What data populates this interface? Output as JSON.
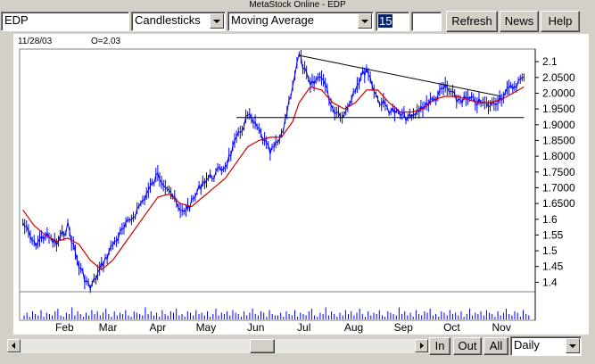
{
  "window": {
    "title": "MetaStock Online - EDP"
  },
  "toolbar": {
    "symbol": "EDP",
    "chart_style": "Candlesticks",
    "indicator": "Moving Average",
    "period": "15",
    "extra_value": "",
    "refresh_label": "Refresh",
    "news_label": "News",
    "help_label": "Help"
  },
  "info": {
    "date": "11/28/03",
    "open": "O=2.03"
  },
  "bottom": {
    "in_label": "In",
    "out_label": "Out",
    "all_label": "All",
    "interval": "Daily"
  },
  "colors": {
    "price": "#0000ff",
    "moving_average": "#cc0000",
    "trendline": "#000000",
    "volume": "#0000ff"
  },
  "chart_data": {
    "type": "candlestick",
    "title": "",
    "x_labels": [
      "Feb",
      "Mar",
      "Apr",
      "May",
      "Jun",
      "Jul",
      "Aug",
      "Sep",
      "Oct",
      "Nov"
    ],
    "y_labels": [
      "2.1",
      "2.0500",
      "2.0000",
      "1.9500",
      "1.9000",
      "1.8500",
      "1.8000",
      "1.7500",
      "1.7000",
      "1.6500",
      "1.6",
      "1.55",
      "1.5",
      "1.45",
      "1.4"
    ],
    "ylim": [
      1.37,
      2.14
    ],
    "price_path": [
      [
        "Jan 20",
        1.59
      ],
      [
        "Jan 27",
        1.52
      ],
      [
        "Feb 3",
        1.55
      ],
      [
        "Feb 10",
        1.52
      ],
      [
        "Feb 17",
        1.58
      ],
      [
        "Feb 24",
        1.45
      ],
      [
        "Mar 3",
        1.38
      ],
      [
        "Mar 10",
        1.45
      ],
      [
        "Mar 17",
        1.52
      ],
      [
        "Mar 24",
        1.57
      ],
      [
        "Mar 31",
        1.62
      ],
      [
        "Apr 7",
        1.68
      ],
      [
        "Apr 14",
        1.74
      ],
      [
        "Apr 21",
        1.7
      ],
      [
        "Apr 28",
        1.62
      ],
      [
        "May 5",
        1.65
      ],
      [
        "May 12",
        1.72
      ],
      [
        "May 19",
        1.74
      ],
      [
        "May 26",
        1.77
      ],
      [
        "Jun 2",
        1.85
      ],
      [
        "Jun 9",
        1.93
      ],
      [
        "Jun 16",
        1.88
      ],
      [
        "Jun 23",
        1.81
      ],
      [
        "Jun 30",
        1.86
      ],
      [
        "Jul 7",
        2.03
      ],
      [
        "Jul 11",
        2.12
      ],
      [
        "Jul 18",
        2.02
      ],
      [
        "Jul 25",
        2.06
      ],
      [
        "Aug 1",
        1.95
      ],
      [
        "Aug 8",
        1.93
      ],
      [
        "Aug 15",
        2.02
      ],
      [
        "Aug 22",
        2.08
      ],
      [
        "Aug 29",
        1.98
      ],
      [
        "Sep 5",
        1.95
      ],
      [
        "Sep 12",
        1.93
      ],
      [
        "Sep 19",
        1.92
      ],
      [
        "Sep 26",
        1.96
      ],
      [
        "Oct 3",
        1.98
      ],
      [
        "Oct 10",
        2.02
      ],
      [
        "Oct 17",
        1.98
      ],
      [
        "Oct 24",
        1.98
      ],
      [
        "Oct 31",
        1.97
      ],
      [
        "Nov 7",
        1.96
      ],
      [
        "Nov 14",
        1.99
      ],
      [
        "Nov 21",
        2.02
      ],
      [
        "Nov 28",
        2.05
      ]
    ],
    "moving_average_path": [
      [
        "Jan 20",
        1.63
      ],
      [
        "Jan 27",
        1.58
      ],
      [
        "Feb 3",
        1.55
      ],
      [
        "Feb 10",
        1.53
      ],
      [
        "Feb 17",
        1.54
      ],
      [
        "Feb 24",
        1.52
      ],
      [
        "Mar 3",
        1.47
      ],
      [
        "Mar 10",
        1.44
      ],
      [
        "Mar 17",
        1.47
      ],
      [
        "Mar 24",
        1.52
      ],
      [
        "Mar 31",
        1.57
      ],
      [
        "Apr 7",
        1.62
      ],
      [
        "Apr 14",
        1.67
      ],
      [
        "Apr 21",
        1.68
      ],
      [
        "Apr 28",
        1.65
      ],
      [
        "May 5",
        1.64
      ],
      [
        "May 12",
        1.67
      ],
      [
        "May 19",
        1.7
      ],
      [
        "May 26",
        1.73
      ],
      [
        "Jun 2",
        1.78
      ],
      [
        "Jun 9",
        1.83
      ],
      [
        "Jun 16",
        1.85
      ],
      [
        "Jun 23",
        1.86
      ],
      [
        "Jun 30",
        1.86
      ],
      [
        "Jul 7",
        1.91
      ],
      [
        "Jul 11",
        1.97
      ],
      [
        "Jul 18",
        2.02
      ],
      [
        "Jul 25",
        2.01
      ],
      [
        "Aug 1",
        1.97
      ],
      [
        "Aug 8",
        1.95
      ],
      [
        "Aug 15",
        1.97
      ],
      [
        "Aug 22",
        2.01
      ],
      [
        "Aug 29",
        2.01
      ],
      [
        "Sep 5",
        1.97
      ],
      [
        "Sep 12",
        1.94
      ],
      [
        "Sep 19",
        1.94
      ],
      [
        "Sep 26",
        1.95
      ],
      [
        "Oct 3",
        1.98
      ],
      [
        "Oct 10",
        1.99
      ],
      [
        "Oct 17",
        1.99
      ],
      [
        "Oct 24",
        1.98
      ],
      [
        "Oct 31",
        1.97
      ],
      [
        "Nov 7",
        1.97
      ],
      [
        "Nov 14",
        1.98
      ],
      [
        "Nov 21",
        2.0
      ],
      [
        "Nov 28",
        2.02
      ]
    ],
    "trendlines": [
      {
        "name": "resistance",
        "from": [
          "Jul 11",
          2.12
        ],
        "to": [
          "Nov 14",
          1.99
        ]
      },
      {
        "name": "support",
        "from": [
          "Jun 2",
          1.923
        ],
        "to": [
          "Nov 28",
          1.923
        ]
      }
    ],
    "volume_bars": [
      3,
      5,
      2,
      6,
      4,
      3,
      7,
      2,
      5,
      4,
      3,
      6,
      8,
      3,
      2,
      5,
      4,
      9,
      3,
      6,
      4,
      2,
      5,
      3,
      7,
      4,
      6,
      3,
      5,
      8,
      4,
      2,
      6,
      3,
      5,
      4,
      7,
      3,
      2,
      6,
      5,
      4,
      3,
      9,
      4,
      6,
      3,
      5,
      2,
      7,
      4,
      3,
      6,
      5,
      8,
      3,
      4,
      2,
      6,
      5,
      3,
      7,
      4,
      5,
      3,
      6,
      2,
      4,
      8,
      3,
      5,
      4,
      6,
      3,
      7,
      5,
      4,
      2,
      6,
      3,
      5,
      8,
      4,
      3,
      6,
      5,
      2,
      7,
      4,
      3
    ]
  }
}
